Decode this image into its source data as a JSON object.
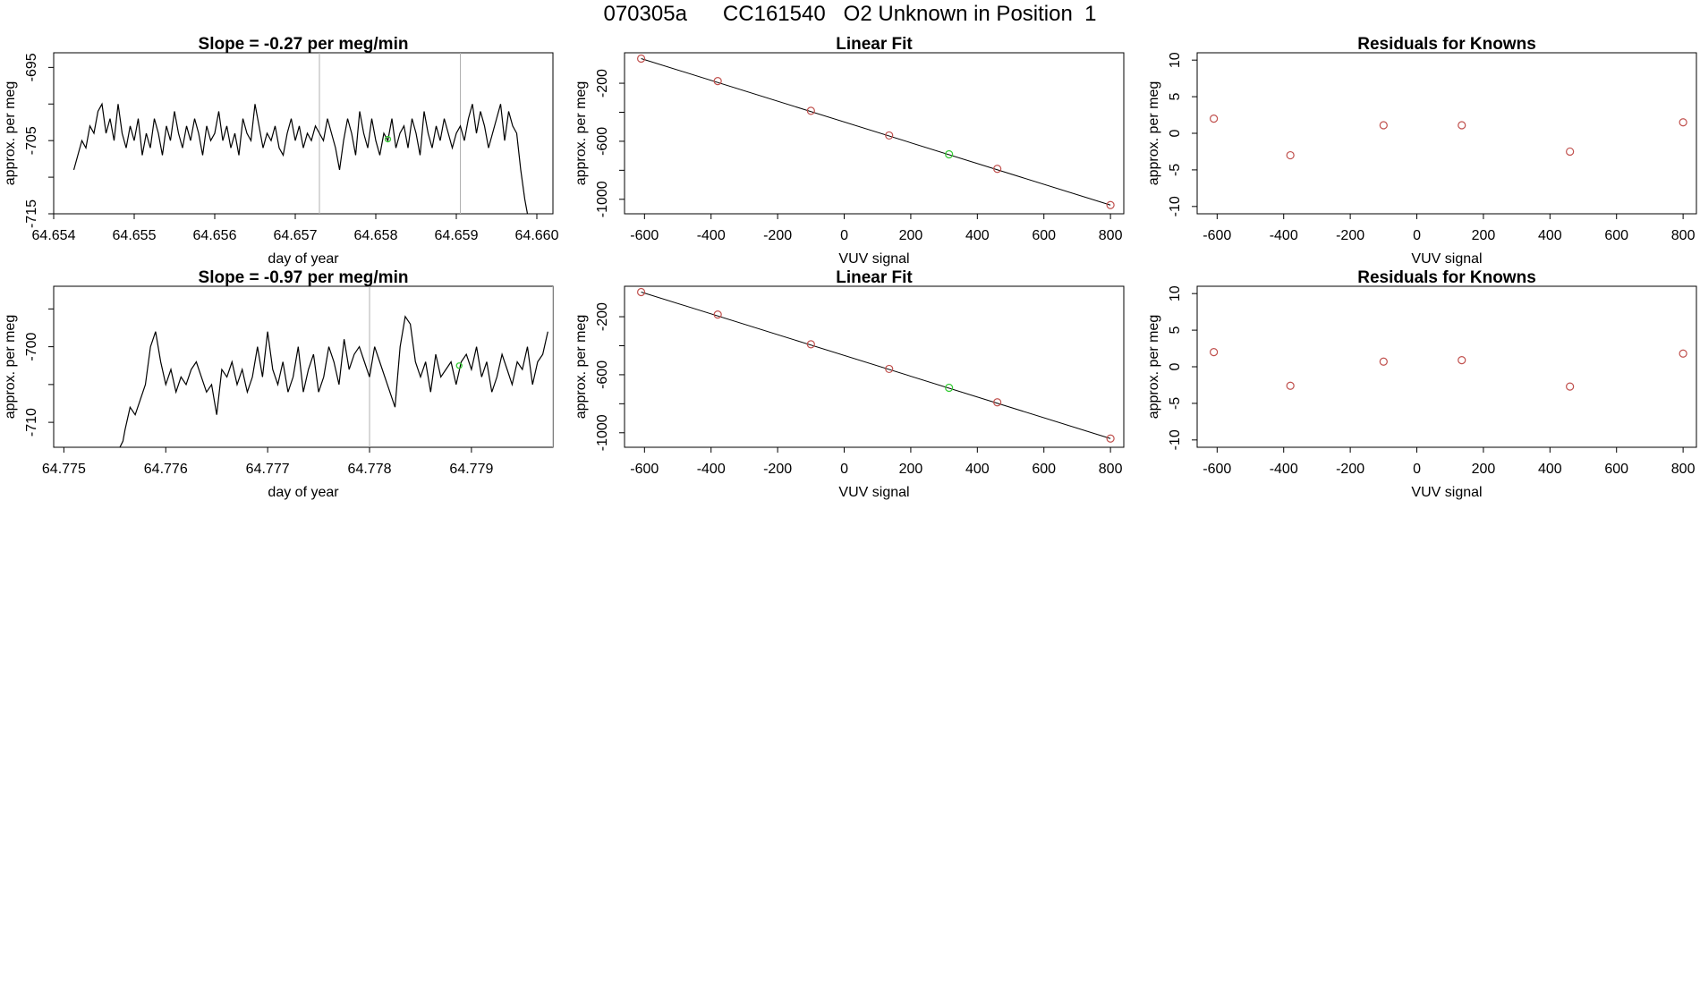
{
  "page": {
    "title": "070305a      CC161540   O2 Unknown in Position  1"
  },
  "colors": {
    "line": "#000000",
    "point_red": "#c0504d",
    "point_green": "#33cc33",
    "marker_line": "#b0b0b0"
  },
  "chart_data": [
    {
      "id": "ts1",
      "type": "line",
      "title": "Slope =  -0.27  per meg/min",
      "xlabel": "day of year",
      "ylabel": "approx. per meg",
      "xlim": [
        64.654,
        64.6602
      ],
      "ylim": [
        -715,
        -693
      ],
      "xticks": [
        "64.654",
        "64.655",
        "64.656",
        "64.657",
        "64.658",
        "64.659",
        "64.660"
      ],
      "yticks": [
        "-715",
        "-705",
        "-695"
      ],
      "ytick_values": [
        -715,
        -710,
        -705,
        -700,
        -695
      ],
      "vlines": [
        64.6573,
        64.65905
      ],
      "green_marker": {
        "x": 64.65815,
        "y": -704.8
      },
      "series": [
        {
          "x": [
            64.65425,
            64.6543,
            64.65435,
            64.6544,
            64.65445,
            64.6545,
            64.65455,
            64.6546,
            64.65465,
            64.6547,
            64.65475,
            64.6548,
            64.65485,
            64.6549,
            64.65495,
            64.655,
            64.65505,
            64.6551,
            64.65515,
            64.6552,
            64.65525,
            64.6553,
            64.65535,
            64.6554,
            64.65545,
            64.6555,
            64.65555,
            64.6556,
            64.65565,
            64.6557,
            64.65575,
            64.6558,
            64.65585,
            64.6559,
            64.65595,
            64.656,
            64.65605,
            64.6561,
            64.65615,
            64.6562,
            64.65625,
            64.6563,
            64.65635,
            64.6564,
            64.65645,
            64.6565,
            64.65655,
            64.6566,
            64.65665,
            64.6567,
            64.65675,
            64.6568,
            64.65685,
            64.6569,
            64.65695,
            64.657,
            64.65705,
            64.6571,
            64.65715,
            64.6572,
            64.65725,
            64.6573,
            64.65735,
            64.6574,
            64.65745,
            64.6575,
            64.65755,
            64.6576,
            64.65765,
            64.6577,
            64.65775,
            64.6578,
            64.65785,
            64.6579,
            64.65795,
            64.658,
            64.65805,
            64.6581,
            64.65815,
            64.6582,
            64.65825,
            64.6583,
            64.65835,
            64.6584,
            64.65845,
            64.6585,
            64.65855,
            64.6586,
            64.65865,
            64.6587,
            64.65875,
            64.6588,
            64.65885,
            64.6589,
            64.65895,
            64.659,
            64.65905,
            64.6591,
            64.65915,
            64.6592,
            64.65925,
            64.6593,
            64.65935,
            64.6594,
            64.65945,
            64.6595,
            64.65955,
            64.6596,
            64.65965,
            64.6597,
            64.65975,
            64.6598,
            64.65985,
            64.6599
          ],
          "y": [
            -709,
            -707,
            -705,
            -706,
            -703,
            -704,
            -701,
            -700,
            -704,
            -702,
            -705,
            -700,
            -704,
            -706,
            -703,
            -705,
            -702,
            -707,
            -704,
            -706,
            -702,
            -704,
            -707,
            -703,
            -705,
            -701,
            -704,
            -706,
            -703,
            -705,
            -702,
            -704,
            -707,
            -703,
            -705,
            -704,
            -701,
            -705,
            -703,
            -706,
            -704,
            -707,
            -702,
            -704,
            -705,
            -700,
            -703,
            -706,
            -704,
            -705,
            -703,
            -706,
            -707,
            -704,
            -702,
            -705,
            -703,
            -706,
            -704,
            -705,
            -703,
            -704,
            -705,
            -702,
            -704,
            -706,
            -709,
            -705,
            -702,
            -704,
            -707,
            -701,
            -704,
            -706,
            -702,
            -705,
            -707,
            -704,
            -705,
            -702,
            -706,
            -704,
            -703,
            -706,
            -702,
            -704,
            -707,
            -701,
            -704,
            -706,
            -703,
            -705,
            -702,
            -704,
            -706,
            -704,
            -703,
            -705,
            -702,
            -700,
            -704,
            -701,
            -703,
            -706,
            -704,
            -702,
            -700,
            -705,
            -701,
            -703,
            -704,
            -709,
            -713,
            -716
          ]
        }
      ]
    },
    {
      "id": "fit1",
      "type": "scatter",
      "title": "Linear Fit",
      "xlabel": "VUV signal",
      "ylabel": "approx. per meg",
      "xlim": [
        -660,
        840
      ],
      "ylim": [
        -1100,
        10
      ],
      "xticks": [
        "-600",
        "-400",
        "-200",
        "0",
        "200",
        "400",
        "600",
        "800"
      ],
      "xtick_values": [
        -600,
        -400,
        -200,
        0,
        200,
        400,
        600,
        800
      ],
      "yticks": [
        "-1000",
        "-600",
        "-200"
      ],
      "ytick_values": [
        -1000,
        -800,
        -600,
        -400,
        -200
      ],
      "points_red": [
        [
          -610,
          -30
        ],
        [
          -380,
          -185
        ],
        [
          -100,
          -390
        ],
        [
          135,
          -560
        ],
        [
          460,
          -790
        ],
        [
          800,
          -1040
        ]
      ],
      "points_green": [
        [
          315,
          -690
        ]
      ],
      "fit_line": [
        [
          -610,
          -30
        ],
        [
          800,
          -1040
        ]
      ]
    },
    {
      "id": "res1",
      "type": "scatter",
      "title": "Residuals for Knowns",
      "xlabel": "VUV signal",
      "ylabel": "approx. per meg",
      "xlim": [
        -660,
        840
      ],
      "ylim": [
        -11,
        11
      ],
      "xticks": [
        "-600",
        "-400",
        "-200",
        "0",
        "200",
        "400",
        "600",
        "800"
      ],
      "xtick_values": [
        -600,
        -400,
        -200,
        0,
        200,
        400,
        600,
        800
      ],
      "yticks": [
        "-10",
        "-5",
        "0",
        "5",
        "10"
      ],
      "ytick_values": [
        -10,
        -5,
        0,
        5,
        10
      ],
      "points_red": [
        [
          -610,
          2.0
        ],
        [
          -380,
          -3.0
        ],
        [
          -100,
          1.1
        ],
        [
          135,
          1.1
        ],
        [
          460,
          -2.5
        ],
        [
          800,
          1.5
        ]
      ]
    },
    {
      "id": "ts2",
      "type": "line",
      "title": "Slope =  -0.97  per meg/min",
      "xlabel": "day of year",
      "ylabel": "approx. per meg",
      "xlim": [
        64.7749,
        64.7798
      ],
      "ylim": [
        -713.3,
        -692
      ],
      "xticks": [
        "64.775",
        "64.776",
        "64.777",
        "64.778",
        "64.779"
      ],
      "yticks": [
        "-710",
        "-700"
      ],
      "ytick_values": [
        -710,
        -705,
        -700,
        -695
      ],
      "vlines": [
        64.778,
        64.7798
      ],
      "green_marker": {
        "x": 64.77888,
        "y": -702.5
      },
      "series": [
        {
          "x": [
            64.77555,
            64.77558,
            64.7756,
            64.77565,
            64.7757,
            64.77575,
            64.7758,
            64.77585,
            64.7759,
            64.77595,
            64.776,
            64.77605,
            64.7761,
            64.77615,
            64.7762,
            64.77625,
            64.7763,
            64.77635,
            64.7764,
            64.77645,
            64.7765,
            64.77655,
            64.7766,
            64.77665,
            64.7767,
            64.77675,
            64.7768,
            64.77685,
            64.7769,
            64.77695,
            64.777,
            64.77705,
            64.7771,
            64.77715,
            64.7772,
            64.77725,
            64.7773,
            64.77735,
            64.7774,
            64.77745,
            64.7775,
            64.77755,
            64.7776,
            64.77765,
            64.7777,
            64.77775,
            64.7778,
            64.77785,
            64.7779,
            64.77795,
            64.778,
            64.77805,
            64.7781,
            64.77815,
            64.7782,
            64.77825,
            64.7783,
            64.77835,
            64.7784,
            64.77845,
            64.7785,
            64.77855,
            64.7786,
            64.77865,
            64.7787,
            64.77875,
            64.7788,
            64.77885,
            64.7789,
            64.77895,
            64.779,
            64.77905,
            64.7791,
            64.77915,
            64.7792,
            64.77925,
            64.7793,
            64.77935,
            64.7794,
            64.77945,
            64.7795,
            64.77955,
            64.7796,
            64.77965,
            64.7797,
            64.77975
          ],
          "y": [
            -713.3,
            -712.5,
            -711,
            -708,
            -709,
            -707,
            -705,
            -700,
            -698,
            -702,
            -705,
            -703,
            -706,
            -704,
            -705,
            -703,
            -702,
            -704,
            -706,
            -705,
            -709,
            -703,
            -704,
            -702,
            -705,
            -703,
            -706,
            -704,
            -700,
            -704,
            -698,
            -703,
            -705,
            -702,
            -706,
            -704,
            -700,
            -706,
            -703,
            -701,
            -706,
            -704,
            -700,
            -702,
            -705,
            -699,
            -703,
            -701,
            -700,
            -702,
            -704,
            -700,
            -702,
            -704,
            -706,
            -708,
            -700,
            -696,
            -697,
            -702,
            -704,
            -702,
            -706,
            -701,
            -704,
            -703,
            -702,
            -705,
            -702,
            -701,
            -703,
            -700,
            -704,
            -702,
            -706,
            -704,
            -701,
            -703,
            -705,
            -702,
            -703,
            -700,
            -705,
            -702,
            -701,
            -698
          ]
        }
      ]
    },
    {
      "id": "fit2",
      "type": "scatter",
      "title": "Linear Fit",
      "xlabel": "VUV signal",
      "ylabel": "approx. per meg",
      "xlim": [
        -660,
        840
      ],
      "ylim": [
        -1100,
        10
      ],
      "xticks": [
        "-600",
        "-400",
        "-200",
        "0",
        "200",
        "400",
        "600",
        "800"
      ],
      "xtick_values": [
        -600,
        -400,
        -200,
        0,
        200,
        400,
        600,
        800
      ],
      "yticks": [
        "-1000",
        "-600",
        "-200"
      ],
      "ytick_values": [
        -1000,
        -800,
        -600,
        -400,
        -200
      ],
      "points_red": [
        [
          -610,
          -30
        ],
        [
          -380,
          -185
        ],
        [
          -100,
          -390
        ],
        [
          135,
          -560
        ],
        [
          460,
          -790
        ],
        [
          800,
          -1040
        ]
      ],
      "points_green": [
        [
          315,
          -690
        ]
      ],
      "fit_line": [
        [
          -610,
          -30
        ],
        [
          800,
          -1040
        ]
      ]
    },
    {
      "id": "res2",
      "type": "scatter",
      "title": "Residuals for Knowns",
      "xlabel": "VUV signal",
      "ylabel": "approx. per meg",
      "xlim": [
        -660,
        840
      ],
      "ylim": [
        -11,
        11
      ],
      "xticks": [
        "-600",
        "-400",
        "-200",
        "0",
        "200",
        "400",
        "600",
        "800"
      ],
      "xtick_values": [
        -600,
        -400,
        -200,
        0,
        200,
        400,
        600,
        800
      ],
      "yticks": [
        "-10",
        "-5",
        "0",
        "5",
        "10"
      ],
      "ytick_values": [
        -10,
        -5,
        0,
        5,
        10
      ],
      "points_red": [
        [
          -610,
          2.0
        ],
        [
          -380,
          -2.6
        ],
        [
          -100,
          0.7
        ],
        [
          135,
          0.9
        ],
        [
          460,
          -2.7
        ],
        [
          800,
          1.8
        ]
      ]
    }
  ]
}
